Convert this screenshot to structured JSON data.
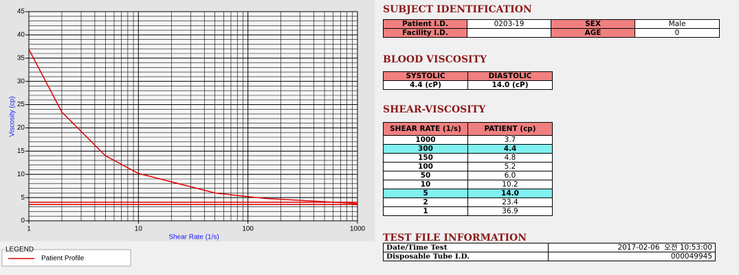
{
  "chart_data": {
    "type": "line",
    "xlabel": "Shear Rate (1/s)",
    "ylabel": "Viscosity (cp)",
    "x": [
      1,
      2,
      5,
      10,
      50,
      100,
      150,
      300,
      1000
    ],
    "series": [
      {
        "name": "Patient Profile",
        "color": "#e00000",
        "values": [
          36.9,
          23.4,
          14.0,
          10.2,
          6.0,
          5.2,
          4.8,
          4.4,
          3.7
        ]
      }
    ],
    "hlines": [
      3.5,
      4.0
    ],
    "xlog": true,
    "xlim": [
      1,
      1000
    ],
    "xticks": [
      1,
      10,
      100,
      1000
    ],
    "ylim": [
      0,
      45
    ],
    "yticks": [
      0,
      5,
      10,
      15,
      20,
      25,
      30,
      35,
      40,
      45
    ],
    "grid": true,
    "legend_title": "LEGEND"
  },
  "subject": {
    "title": "SUBJECT IDENTIFICATION",
    "rows": [
      [
        "Patient I.D.",
        "0203-19",
        "SEX",
        "Male"
      ],
      [
        "Facility I.D.",
        null,
        "AGE",
        "0"
      ]
    ]
  },
  "blood": {
    "title": "BLOOD VISCOSITY",
    "headers": [
      "SYSTOLIC",
      "DIASTOLIC"
    ],
    "values": [
      "4.4 (cP)",
      "14.0 (cP)"
    ]
  },
  "shear": {
    "title": "SHEAR-VISCOSITY",
    "headers": [
      "SHEAR RATE (1/s)",
      "PATIENT (cp)"
    ],
    "rows": [
      [
        "1000",
        "3.7"
      ],
      [
        "300",
        "4.4"
      ],
      [
        "150",
        "4.8"
      ],
      [
        "100",
        "5.2"
      ],
      [
        "50",
        "6.0"
      ],
      [
        "10",
        "10.2"
      ],
      [
        "5",
        "14.0"
      ],
      [
        "2",
        "23.4"
      ],
      [
        "1",
        "36.9"
      ]
    ],
    "highlight": [
      1,
      6
    ]
  },
  "testfile": {
    "title": "TEST FILE INFORMATION",
    "rows": [
      [
        "Date/Time Test",
        "2017-02-06  오전 10:53:00"
      ],
      [
        "Disposable Tube I.D.",
        "000049945"
      ]
    ]
  }
}
